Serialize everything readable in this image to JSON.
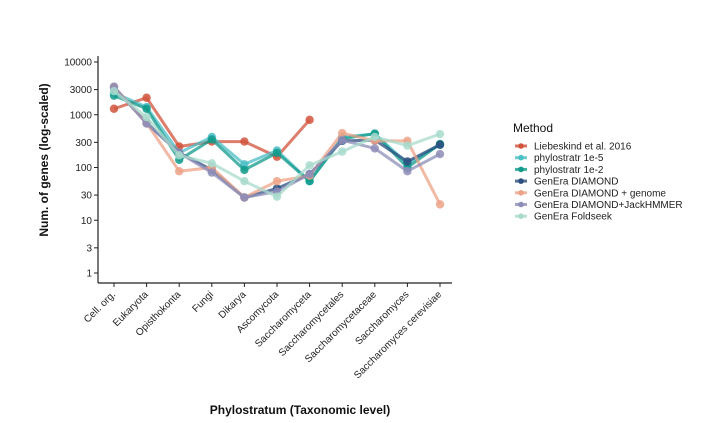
{
  "chart_data": {
    "type": "line",
    "title": "",
    "xlabel": "Phylostratum (Taxonomic level)",
    "ylabel": "Num. of genes (log-scaled)",
    "yscale": "log",
    "ylim": [
      0.7,
      14000
    ],
    "yticks": [
      1,
      3,
      10,
      30,
      100,
      300,
      1000,
      3000,
      10000
    ],
    "ytick_labels": [
      "1",
      "3",
      "10",
      "30",
      "100",
      "300",
      "1000",
      "3000",
      "10000"
    ],
    "categories": [
      "Cell. org.",
      "Eukaryota",
      "Opisthokonta",
      "Fungi",
      "Dikarya",
      "Ascomycota",
      "Saccharomyceta",
      "Saccharomycetales",
      "Saccharomycetaceae",
      "Saccharomyces",
      "Saccharomyces cerevisiae"
    ],
    "legend_title": "Method",
    "legend_position": "right",
    "series": [
      {
        "name": "Liebeskind et al. 2016",
        "color": "#d1533c",
        "values": [
          1300,
          2100,
          250,
          310,
          310,
          160,
          800,
          null,
          null,
          null,
          null
        ]
      },
      {
        "name": "phylostratr 1e-5",
        "color": "#4bbec5",
        "values": [
          2600,
          1400,
          190,
          380,
          115,
          210,
          55,
          380,
          430,
          120,
          270
        ]
      },
      {
        "name": "phylostratr 1e-2",
        "color": "#119a8b",
        "values": [
          2300,
          1300,
          140,
          340,
          90,
          190,
          55,
          350,
          440,
          100,
          280
        ]
      },
      {
        "name": "GenEra DIAMOND",
        "color": "#2c4f80",
        "values": [
          3300,
          700,
          190,
          90,
          27,
          40,
          75,
          320,
          330,
          130,
          270
        ]
      },
      {
        "name": "GenEra DIAMOND + genome",
        "color": "#eda287",
        "values": [
          3400,
          700,
          85,
          100,
          27,
          55,
          70,
          450,
          320,
          320,
          20
        ]
      },
      {
        "name": "GenEra DIAMOND+JackHMMER",
        "color": "#8d8db8",
        "values": [
          3400,
          680,
          190,
          80,
          27,
          35,
          75,
          330,
          230,
          85,
          180
        ]
      },
      {
        "name": "GenEra Foldseek",
        "color": "#a8dbcc",
        "values": [
          2800,
          900,
          170,
          120,
          55,
          28,
          110,
          200,
          380,
          260,
          430
        ]
      }
    ]
  }
}
